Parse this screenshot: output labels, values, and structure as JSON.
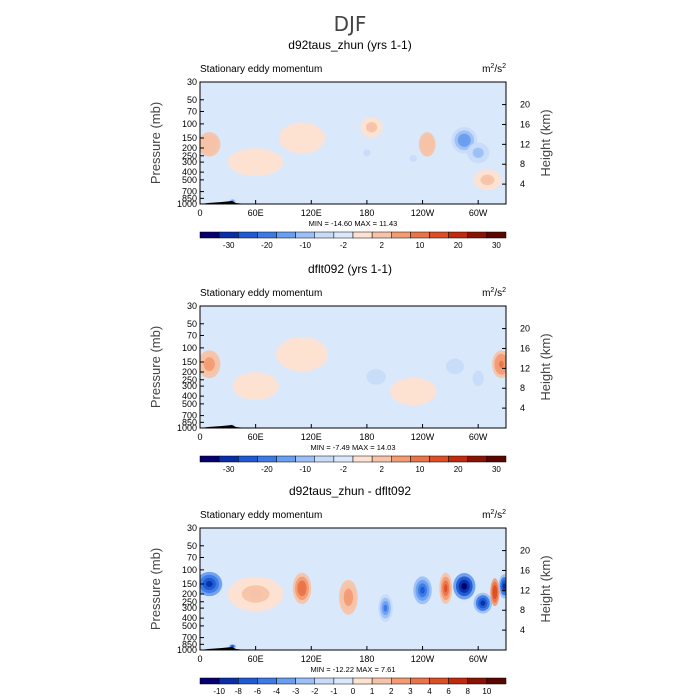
{
  "page_title": "DJF",
  "colors": {
    "scale_main": [
      "#04006e",
      "#0a2ea8",
      "#1e5ad2",
      "#3c7ae6",
      "#6a9ef0",
      "#9cc0f6",
      "#c8dcfa",
      "#dae8fb",
      "#fde2d2",
      "#f7c3a8",
      "#f29c74",
      "#ea7449",
      "#de4e25",
      "#c22a0c",
      "#8a1204",
      "#5a0500"
    ],
    "scale_diff": [
      "#04006e",
      "#0a2ea8",
      "#1e5ad2",
      "#3c7ae6",
      "#6a9ef0",
      "#9cc0f6",
      "#c8dcfa",
      "#dae8fb",
      "#fde2d2",
      "#f7c3a8",
      "#f29c74",
      "#ea7449",
      "#de4e25",
      "#c22a0c",
      "#8a1204",
      "#5a0500"
    ],
    "background_field": "#dae8fb",
    "topography": "#000000"
  },
  "chart_data": [
    {
      "type": "heatmap",
      "title": "d92taus_zhun (yrs 1-1)",
      "left_label": "Stationary eddy momentum",
      "units_base": "m",
      "units_sup1": "2",
      "units_mid": "/s",
      "units_sup2": "2",
      "ylabel": "Pressure (mb)",
      "ylabel_right": "Height (km)",
      "x_ticks": [
        "0",
        "60E",
        "120E",
        "180",
        "120W",
        "60W"
      ],
      "x_tick_lon": [
        0,
        60,
        120,
        180,
        240,
        300
      ],
      "xlim": [
        0,
        330
      ],
      "y_ticks": [
        "30",
        "50",
        "70",
        "100",
        "150",
        "200",
        "250",
        "300",
        "400",
        "500",
        "700",
        "850",
        "1000"
      ],
      "y_tick_p": [
        30,
        50,
        70,
        100,
        150,
        200,
        250,
        300,
        400,
        500,
        700,
        850,
        1000
      ],
      "ylim_p": [
        30,
        1000
      ],
      "right_ticks": [
        "4",
        "8",
        "12",
        "16",
        "20"
      ],
      "right_tick_km": [
        4,
        8,
        12,
        16,
        20
      ],
      "min_label": "MIN = ",
      "min_value": "-14.60",
      "max_label": "MAX = ",
      "max_value": "11.43",
      "colorbar_labels": [
        "-30",
        "-20",
        "-10",
        "-2",
        "2",
        "10",
        "20",
        "30"
      ],
      "blobs": [
        {
          "lon": 10,
          "p": 180,
          "value": 6,
          "rx": 12,
          "ry": 0.35
        },
        {
          "lon": 245,
          "p": 180,
          "value": 6,
          "rx": 9,
          "ry": 0.35
        },
        {
          "lon": 285,
          "p": 160,
          "value": -14,
          "rx": 14,
          "ry": 0.38
        },
        {
          "lon": 300,
          "p": 230,
          "value": -8,
          "rx": 12,
          "ry": 0.3
        },
        {
          "lon": 185,
          "p": 110,
          "value": 3,
          "rx": 12,
          "ry": 0.3
        },
        {
          "lon": 180,
          "p": 230,
          "value": -3,
          "rx": 8,
          "ry": 0.2
        },
        {
          "lon": 230,
          "p": 270,
          "value": -3,
          "rx": 8,
          "ry": 0.2
        },
        {
          "lon": 110,
          "p": 150,
          "value": 2,
          "rx": 25,
          "ry": 0.45
        },
        {
          "lon": 60,
          "p": 300,
          "value": 2,
          "rx": 30,
          "ry": 0.4
        },
        {
          "lon": 310,
          "p": 500,
          "value": 3,
          "rx": 15,
          "ry": 0.3
        },
        {
          "lon": 35,
          "p": 920,
          "value": -12,
          "rx": 4,
          "ry": 0.06
        }
      ]
    },
    {
      "type": "heatmap",
      "title": "dflt092 (yrs 1-1)",
      "left_label": "Stationary eddy momentum",
      "units_base": "m",
      "units_sup1": "2",
      "units_mid": "/s",
      "units_sup2": "2",
      "ylabel": "Pressure (mb)",
      "ylabel_right": "Height (km)",
      "x_ticks": [
        "0",
        "60E",
        "120E",
        "180",
        "120W",
        "60W"
      ],
      "x_tick_lon": [
        0,
        60,
        120,
        180,
        240,
        300
      ],
      "xlim": [
        0,
        330
      ],
      "y_ticks": [
        "30",
        "50",
        "70",
        "100",
        "150",
        "200",
        "250",
        "300",
        "400",
        "500",
        "700",
        "850",
        "1000"
      ],
      "y_tick_p": [
        30,
        50,
        70,
        100,
        150,
        200,
        250,
        300,
        400,
        500,
        700,
        850,
        1000
      ],
      "ylim_p": [
        30,
        1000
      ],
      "right_ticks": [
        "4",
        "8",
        "12",
        "16",
        "20"
      ],
      "right_tick_km": [
        4,
        8,
        12,
        16,
        20
      ],
      "min_label": "MIN = ",
      "min_value": "-7.49",
      "max_label": "MAX = ",
      "max_value": "14.03",
      "colorbar_labels": [
        "-30",
        "-20",
        "-10",
        "-2",
        "2",
        "10",
        "20",
        "30"
      ],
      "blobs": [
        {
          "lon": 10,
          "p": 160,
          "value": 10,
          "rx": 12,
          "ry": 0.4
        },
        {
          "lon": 325,
          "p": 160,
          "value": 11,
          "rx": 10,
          "ry": 0.4
        },
        {
          "lon": 190,
          "p": 230,
          "value": -4,
          "rx": 14,
          "ry": 0.3
        },
        {
          "lon": 275,
          "p": 170,
          "value": -5,
          "rx": 13,
          "ry": 0.3
        },
        {
          "lon": 300,
          "p": 240,
          "value": -4,
          "rx": 8,
          "ry": 0.3
        },
        {
          "lon": 110,
          "p": 120,
          "value": 2,
          "rx": 28,
          "ry": 0.5
        },
        {
          "lon": 230,
          "p": 350,
          "value": 2,
          "rx": 25,
          "ry": 0.4
        },
        {
          "lon": 60,
          "p": 300,
          "value": 2,
          "rx": 25,
          "ry": 0.4
        },
        {
          "lon": 35,
          "p": 920,
          "value": -5,
          "rx": 4,
          "ry": 0.06
        }
      ]
    },
    {
      "type": "heatmap",
      "title": "d92taus_zhun - dflt092",
      "left_label": "Stationary eddy momentum",
      "units_base": "m",
      "units_sup1": "2",
      "units_mid": "/s",
      "units_sup2": "2",
      "ylabel": "Pressure (mb)",
      "ylabel_right": "Height (km)",
      "x_ticks": [
        "0",
        "60E",
        "120E",
        "180",
        "120W",
        "60W"
      ],
      "x_tick_lon": [
        0,
        60,
        120,
        180,
        240,
        300
      ],
      "xlim": [
        0,
        330
      ],
      "y_ticks": [
        "30",
        "50",
        "70",
        "100",
        "150",
        "200",
        "250",
        "300",
        "400",
        "500",
        "700",
        "850",
        "1000"
      ],
      "y_tick_p": [
        30,
        50,
        70,
        100,
        150,
        200,
        250,
        300,
        400,
        500,
        700,
        850,
        1000
      ],
      "ylim_p": [
        30,
        1000
      ],
      "right_ticks": [
        "4",
        "8",
        "12",
        "16",
        "20"
      ],
      "right_tick_km": [
        4,
        8,
        12,
        16,
        20
      ],
      "min_label": "MIN = ",
      "min_value": "-12.22",
      "max_label": "MAX = ",
      "max_value": "7.61",
      "colorbar_labels": [
        "-10",
        "-8",
        "-6",
        "-4",
        "-3",
        "-2",
        "-1",
        "0",
        "1",
        "2",
        "3",
        "4",
        "6",
        "8",
        "10"
      ],
      "blobs": [
        {
          "lon": 10,
          "p": 150,
          "value": -9,
          "rx": 14,
          "ry": 0.35
        },
        {
          "lon": 110,
          "p": 170,
          "value": 4,
          "rx": 10,
          "ry": 0.45
        },
        {
          "lon": 160,
          "p": 220,
          "value": 3,
          "rx": 10,
          "ry": 0.5
        },
        {
          "lon": 200,
          "p": 300,
          "value": -4,
          "rx": 8,
          "ry": 0.4
        },
        {
          "lon": 240,
          "p": 180,
          "value": -6,
          "rx": 10,
          "ry": 0.4
        },
        {
          "lon": 265,
          "p": 170,
          "value": 5,
          "rx": 7,
          "ry": 0.45
        },
        {
          "lon": 285,
          "p": 160,
          "value": -11,
          "rx": 12,
          "ry": 0.38
        },
        {
          "lon": 305,
          "p": 260,
          "value": -8,
          "rx": 10,
          "ry": 0.3
        },
        {
          "lon": 318,
          "p": 190,
          "value": 6,
          "rx": 5,
          "ry": 0.4
        },
        {
          "lon": 328,
          "p": 160,
          "value": -8,
          "rx": 6,
          "ry": 0.35
        },
        {
          "lon": 60,
          "p": 200,
          "value": 1.5,
          "rx": 30,
          "ry": 0.5
        },
        {
          "lon": 35,
          "p": 900,
          "value": -6,
          "rx": 4,
          "ry": 0.06
        }
      ]
    }
  ]
}
